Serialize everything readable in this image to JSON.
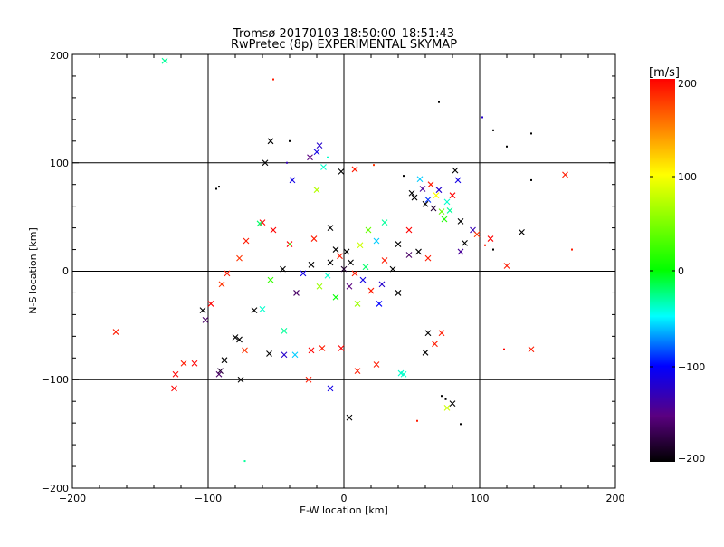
{
  "chart_data": {
    "type": "scatter",
    "title": "Tromsø 20170103 18:50:00–18:51:43",
    "subtitle": "RwPretec (8p) EXPERIMENTAL SKYMAP",
    "xlabel": "E-W location [km]",
    "ylabel": "N-S location [km]",
    "xlim": [
      -200,
      200
    ],
    "ylim": [
      -200,
      200
    ],
    "xticks": [
      "−200",
      "−100",
      "0",
      "100",
      "200"
    ],
    "yticks": [
      "−200",
      "−100",
      "0",
      "100",
      "200"
    ],
    "grid": true,
    "marker_types": [
      "dot",
      "cross"
    ],
    "colorbar": {
      "label": "[m/s]",
      "range": [
        -200,
        200
      ],
      "ticks": [
        "200",
        "100",
        "0",
        "−100",
        "−200"
      ],
      "colors": [
        "#ff0000",
        "#ffff00",
        "#00ff00",
        "#00ffff",
        "#0000ff",
        "#5a0080",
        "#000000"
      ]
    },
    "points": [
      {
        "x": -132,
        "y": 194,
        "v": -30,
        "m": "cross"
      },
      {
        "x": -52,
        "y": 177,
        "v": 190,
        "m": "dot"
      },
      {
        "x": 70,
        "y": 156,
        "v": -200,
        "m": "dot"
      },
      {
        "x": 102,
        "y": 142,
        "v": -120,
        "m": "dot"
      },
      {
        "x": 110,
        "y": 130,
        "v": -200,
        "m": "dot"
      },
      {
        "x": 138,
        "y": 127,
        "v": -200,
        "m": "dot"
      },
      {
        "x": -54,
        "y": 120,
        "v": -200,
        "m": "cross"
      },
      {
        "x": -40,
        "y": 120,
        "v": -200,
        "m": "dot"
      },
      {
        "x": -18,
        "y": 116,
        "v": -120,
        "m": "cross"
      },
      {
        "x": -20,
        "y": 110,
        "v": -110,
        "m": "cross"
      },
      {
        "x": -25,
        "y": 105,
        "v": -150,
        "m": "cross"
      },
      {
        "x": -12,
        "y": 105,
        "v": -40,
        "m": "dot"
      },
      {
        "x": -58,
        "y": 100,
        "v": -200,
        "m": "cross"
      },
      {
        "x": -42,
        "y": 100,
        "v": -130,
        "m": "dot"
      },
      {
        "x": -15,
        "y": 96,
        "v": -40,
        "m": "cross"
      },
      {
        "x": 22,
        "y": 98,
        "v": 180,
        "m": "dot"
      },
      {
        "x": 8,
        "y": 94,
        "v": 190,
        "m": "cross"
      },
      {
        "x": -2,
        "y": 92,
        "v": -200,
        "m": "cross"
      },
      {
        "x": 82,
        "y": 93,
        "v": -200,
        "m": "cross"
      },
      {
        "x": 163,
        "y": 89,
        "v": 190,
        "m": "cross"
      },
      {
        "x": -38,
        "y": 84,
        "v": -110,
        "m": "cross"
      },
      {
        "x": -92,
        "y": 78,
        "v": -200,
        "m": "dot"
      },
      {
        "x": -94,
        "y": 76,
        "v": -200,
        "m": "dot"
      },
      {
        "x": 138,
        "y": 84,
        "v": -200,
        "m": "dot"
      },
      {
        "x": -20,
        "y": 75,
        "v": 70,
        "m": "cross"
      },
      {
        "x": -60,
        "y": 45,
        "v": 200,
        "m": "cross"
      },
      {
        "x": -62,
        "y": 44,
        "v": -20,
        "m": "cross"
      },
      {
        "x": -52,
        "y": 38,
        "v": 200,
        "m": "cross"
      },
      {
        "x": -72,
        "y": 28,
        "v": 190,
        "m": "cross"
      },
      {
        "x": -40,
        "y": 25,
        "v": 200,
        "m": "cross"
      },
      {
        "x": -77,
        "y": 12,
        "v": 180,
        "m": "cross"
      },
      {
        "x": -86,
        "y": -2,
        "v": 190,
        "m": "cross"
      },
      {
        "x": -90,
        "y": -12,
        "v": 180,
        "m": "cross"
      },
      {
        "x": -98,
        "y": -30,
        "v": 200,
        "m": "cross"
      },
      {
        "x": -104,
        "y": -36,
        "v": -200,
        "m": "cross"
      },
      {
        "x": -102,
        "y": -45,
        "v": -160,
        "m": "cross"
      },
      {
        "x": -66,
        "y": -36,
        "v": -200,
        "m": "cross"
      },
      {
        "x": -60,
        "y": -35,
        "v": -40,
        "m": "cross"
      },
      {
        "x": -168,
        "y": -56,
        "v": 190,
        "m": "cross"
      },
      {
        "x": -80,
        "y": -61,
        "v": -200,
        "m": "cross"
      },
      {
        "x": -77,
        "y": -63,
        "v": -200,
        "m": "cross"
      },
      {
        "x": -44,
        "y": -55,
        "v": -30,
        "m": "cross"
      },
      {
        "x": -73,
        "y": -73,
        "v": 180,
        "m": "cross"
      },
      {
        "x": -55,
        "y": -76,
        "v": -200,
        "m": "cross"
      },
      {
        "x": -44,
        "y": -77,
        "v": -120,
        "m": "cross"
      },
      {
        "x": -36,
        "y": -77,
        "v": -60,
        "m": "cross"
      },
      {
        "x": -24,
        "y": -73,
        "v": 200,
        "m": "cross"
      },
      {
        "x": -16,
        "y": -71,
        "v": 190,
        "m": "cross"
      },
      {
        "x": -2,
        "y": -71,
        "v": 200,
        "m": "cross"
      },
      {
        "x": -118,
        "y": -85,
        "v": 190,
        "m": "cross"
      },
      {
        "x": -110,
        "y": -85,
        "v": 200,
        "m": "cross"
      },
      {
        "x": -88,
        "y": -82,
        "v": -200,
        "m": "cross"
      },
      {
        "x": -91,
        "y": -92,
        "v": -180,
        "m": "cross"
      },
      {
        "x": -92,
        "y": -95,
        "v": -160,
        "m": "cross"
      },
      {
        "x": -124,
        "y": -95,
        "v": 200,
        "m": "cross"
      },
      {
        "x": -125,
        "y": -108,
        "v": 200,
        "m": "cross"
      },
      {
        "x": -76,
        "y": -100,
        "v": -200,
        "m": "cross"
      },
      {
        "x": -26,
        "y": -100,
        "v": 190,
        "m": "cross"
      },
      {
        "x": -10,
        "y": -108,
        "v": -110,
        "m": "cross"
      },
      {
        "x": 4,
        "y": -135,
        "v": -200,
        "m": "cross"
      },
      {
        "x": 10,
        "y": -92,
        "v": 190,
        "m": "cross"
      },
      {
        "x": 24,
        "y": -86,
        "v": 190,
        "m": "cross"
      },
      {
        "x": 42,
        "y": -94,
        "v": -40,
        "m": "cross"
      },
      {
        "x": 44,
        "y": -95,
        "v": -40,
        "m": "cross"
      },
      {
        "x": 60,
        "y": -75,
        "v": -200,
        "m": "cross"
      },
      {
        "x": 62,
        "y": -57,
        "v": -200,
        "m": "cross"
      },
      {
        "x": 72,
        "y": -57,
        "v": 190,
        "m": "cross"
      },
      {
        "x": 67,
        "y": -67,
        "v": 190,
        "m": "cross"
      },
      {
        "x": 76,
        "y": -126,
        "v": 80,
        "m": "cross"
      },
      {
        "x": 80,
        "y": -122,
        "v": -200,
        "m": "cross"
      },
      {
        "x": 75,
        "y": -118,
        "v": -200,
        "m": "dot"
      },
      {
        "x": 72,
        "y": -115,
        "v": -200,
        "m": "dot"
      },
      {
        "x": 86,
        "y": -141,
        "v": -200,
        "m": "dot"
      },
      {
        "x": 54,
        "y": -138,
        "v": 190,
        "m": "dot"
      },
      {
        "x": -73,
        "y": -175,
        "v": -30,
        "m": "dot"
      },
      {
        "x": 138,
        "y": -72,
        "v": 190,
        "m": "cross"
      },
      {
        "x": 118,
        "y": -72,
        "v": 200,
        "m": "dot"
      },
      {
        "x": 120,
        "y": 5,
        "v": 190,
        "m": "cross"
      },
      {
        "x": 131,
        "y": 36,
        "v": -200,
        "m": "cross"
      },
      {
        "x": 168,
        "y": 20,
        "v": 190,
        "m": "dot"
      },
      {
        "x": 95,
        "y": 38,
        "v": -130,
        "m": "cross"
      },
      {
        "x": 98,
        "y": 34,
        "v": 180,
        "m": "cross"
      },
      {
        "x": 108,
        "y": 30,
        "v": 200,
        "m": "cross"
      },
      {
        "x": 104,
        "y": 24,
        "v": 190,
        "m": "dot"
      },
      {
        "x": 110,
        "y": 20,
        "v": -200,
        "m": "dot"
      },
      {
        "x": 89,
        "y": 26,
        "v": -200,
        "m": "cross"
      },
      {
        "x": 86,
        "y": 18,
        "v": -140,
        "m": "cross"
      },
      {
        "x": 52,
        "y": 68,
        "v": -200,
        "m": "cross"
      },
      {
        "x": 60,
        "y": 62,
        "v": -200,
        "m": "cross"
      },
      {
        "x": 66,
        "y": 58,
        "v": -180,
        "m": "cross"
      },
      {
        "x": 72,
        "y": 55,
        "v": 40,
        "m": "cross"
      },
      {
        "x": 76,
        "y": 64,
        "v": -40,
        "m": "cross"
      },
      {
        "x": 80,
        "y": 70,
        "v": 200,
        "m": "cross"
      },
      {
        "x": 70,
        "y": 75,
        "v": -120,
        "m": "cross"
      },
      {
        "x": 64,
        "y": 80,
        "v": 190,
        "m": "cross"
      },
      {
        "x": 58,
        "y": 76,
        "v": -140,
        "m": "cross"
      },
      {
        "x": 74,
        "y": 48,
        "v": 10,
        "m": "cross"
      },
      {
        "x": 84,
        "y": 84,
        "v": -110,
        "m": "cross"
      },
      {
        "x": 86,
        "y": 46,
        "v": -200,
        "m": "cross"
      },
      {
        "x": 68,
        "y": 70,
        "v": 100,
        "m": "cross"
      },
      {
        "x": 62,
        "y": 66,
        "v": -90,
        "m": "cross"
      },
      {
        "x": 78,
        "y": 56,
        "v": -30,
        "m": "cross"
      },
      {
        "x": 40,
        "y": 25,
        "v": -200,
        "m": "cross"
      },
      {
        "x": 55,
        "y": 18,
        "v": -200,
        "m": "cross"
      },
      {
        "x": 48,
        "y": 15,
        "v": -160,
        "m": "cross"
      },
      {
        "x": 30,
        "y": 10,
        "v": 190,
        "m": "cross"
      },
      {
        "x": 62,
        "y": 12,
        "v": 190,
        "m": "cross"
      },
      {
        "x": 36,
        "y": 2,
        "v": -200,
        "m": "cross"
      },
      {
        "x": 28,
        "y": -12,
        "v": -120,
        "m": "cross"
      },
      {
        "x": 40,
        "y": -20,
        "v": -200,
        "m": "cross"
      },
      {
        "x": -6,
        "y": 20,
        "v": -200,
        "m": "cross"
      },
      {
        "x": -3,
        "y": 14,
        "v": 190,
        "m": "cross"
      },
      {
        "x": 2,
        "y": 18,
        "v": -200,
        "m": "cross"
      },
      {
        "x": -10,
        "y": 8,
        "v": -200,
        "m": "cross"
      },
      {
        "x": 5,
        "y": 8,
        "v": -200,
        "m": "cross"
      },
      {
        "x": 0,
        "y": 2,
        "v": -180,
        "m": "cross"
      },
      {
        "x": 8,
        "y": -2,
        "v": 190,
        "m": "cross"
      },
      {
        "x": -12,
        "y": -4,
        "v": -40,
        "m": "cross"
      },
      {
        "x": 14,
        "y": -8,
        "v": -110,
        "m": "cross"
      },
      {
        "x": 20,
        "y": -18,
        "v": 190,
        "m": "cross"
      },
      {
        "x": 4,
        "y": -14,
        "v": -150,
        "m": "cross"
      },
      {
        "x": -18,
        "y": -14,
        "v": 60,
        "m": "cross"
      },
      {
        "x": 12,
        "y": 24,
        "v": 80,
        "m": "cross"
      },
      {
        "x": 24,
        "y": 28,
        "v": -60,
        "m": "cross"
      },
      {
        "x": 16,
        "y": 4,
        "v": -20,
        "m": "cross"
      },
      {
        "x": -24,
        "y": 6,
        "v": -200,
        "m": "cross"
      },
      {
        "x": -30,
        "y": -2,
        "v": -110,
        "m": "cross"
      },
      {
        "x": -45,
        "y": 2,
        "v": -200,
        "m": "cross"
      },
      {
        "x": -54,
        "y": -8,
        "v": 20,
        "m": "cross"
      },
      {
        "x": -35,
        "y": -20,
        "v": -160,
        "m": "cross"
      },
      {
        "x": 18,
        "y": 38,
        "v": 40,
        "m": "cross"
      },
      {
        "x": 30,
        "y": 45,
        "v": -30,
        "m": "cross"
      },
      {
        "x": 10,
        "y": -30,
        "v": 60,
        "m": "cross"
      },
      {
        "x": -6,
        "y": -24,
        "v": 0,
        "m": "cross"
      },
      {
        "x": 26,
        "y": -30,
        "v": -100,
        "m": "cross"
      },
      {
        "x": 48,
        "y": 38,
        "v": 200,
        "m": "cross"
      },
      {
        "x": -10,
        "y": 40,
        "v": -200,
        "m": "cross"
      },
      {
        "x": -22,
        "y": 30,
        "v": 190,
        "m": "cross"
      },
      {
        "x": 50,
        "y": 72,
        "v": -200,
        "m": "cross"
      },
      {
        "x": 56,
        "y": 85,
        "v": -60,
        "m": "cross"
      },
      {
        "x": 44,
        "y": 88,
        "v": -200,
        "m": "dot"
      },
      {
        "x": -40,
        "y": 25,
        "v": 20,
        "m": "dot"
      },
      {
        "x": 120,
        "y": 115,
        "v": -200,
        "m": "dot"
      }
    ]
  }
}
